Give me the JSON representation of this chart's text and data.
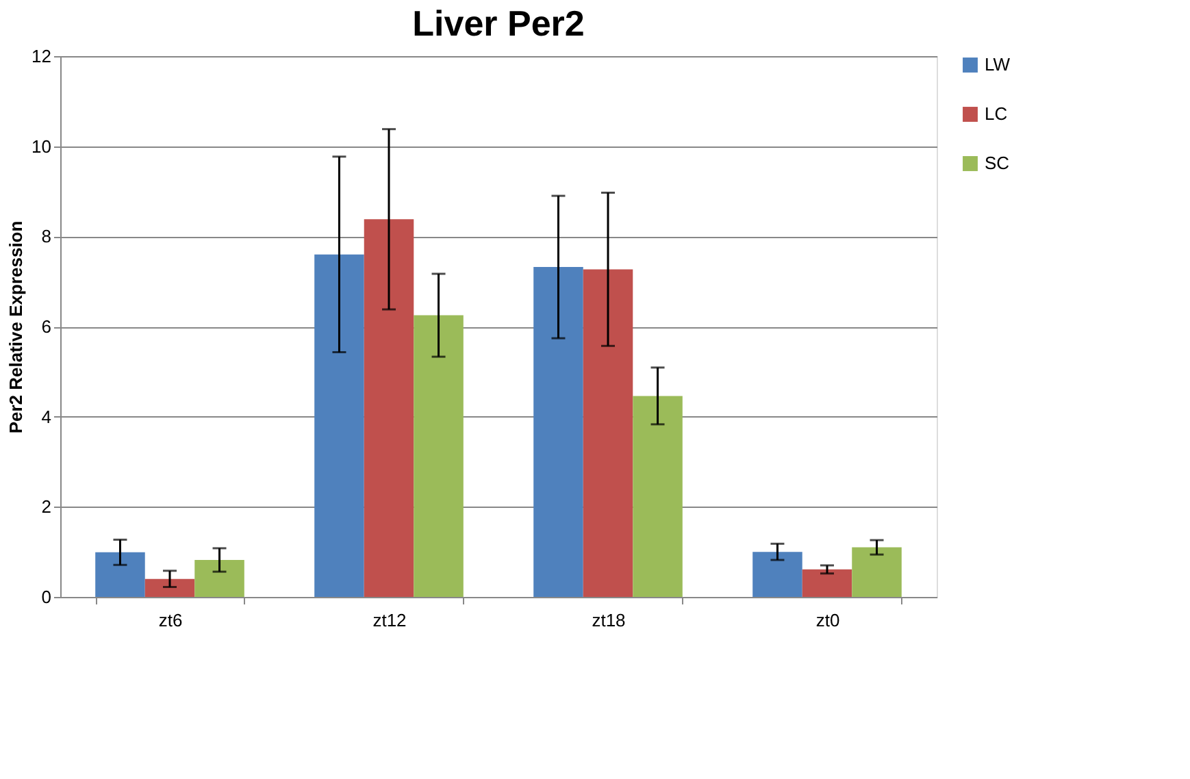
{
  "chart_data": {
    "type": "bar",
    "title": "Liver Per2",
    "ylabel": "Per2 Relative Expression",
    "categories": [
      "zt6",
      "zt12",
      "zt18",
      "zt0"
    ],
    "series": [
      {
        "name": "LW",
        "color": "#4f81bd",
        "values": [
          0.99,
          7.6,
          7.32,
          1.0
        ],
        "errors": [
          0.28,
          2.17,
          1.58,
          0.18
        ]
      },
      {
        "name": "LC",
        "color": "#c0504d",
        "values": [
          0.4,
          8.38,
          7.27,
          0.61
        ],
        "errors": [
          0.18,
          2.0,
          1.7,
          0.09
        ]
      },
      {
        "name": "SC",
        "color": "#9bbb59",
        "values": [
          0.82,
          6.25,
          4.46,
          1.1
        ],
        "errors": [
          0.26,
          0.92,
          0.63,
          0.16
        ]
      }
    ],
    "ylim": [
      0,
      12
    ],
    "yticks": [
      0,
      2,
      4,
      6,
      8,
      10,
      12
    ],
    "grid": "y",
    "legend": "right"
  }
}
